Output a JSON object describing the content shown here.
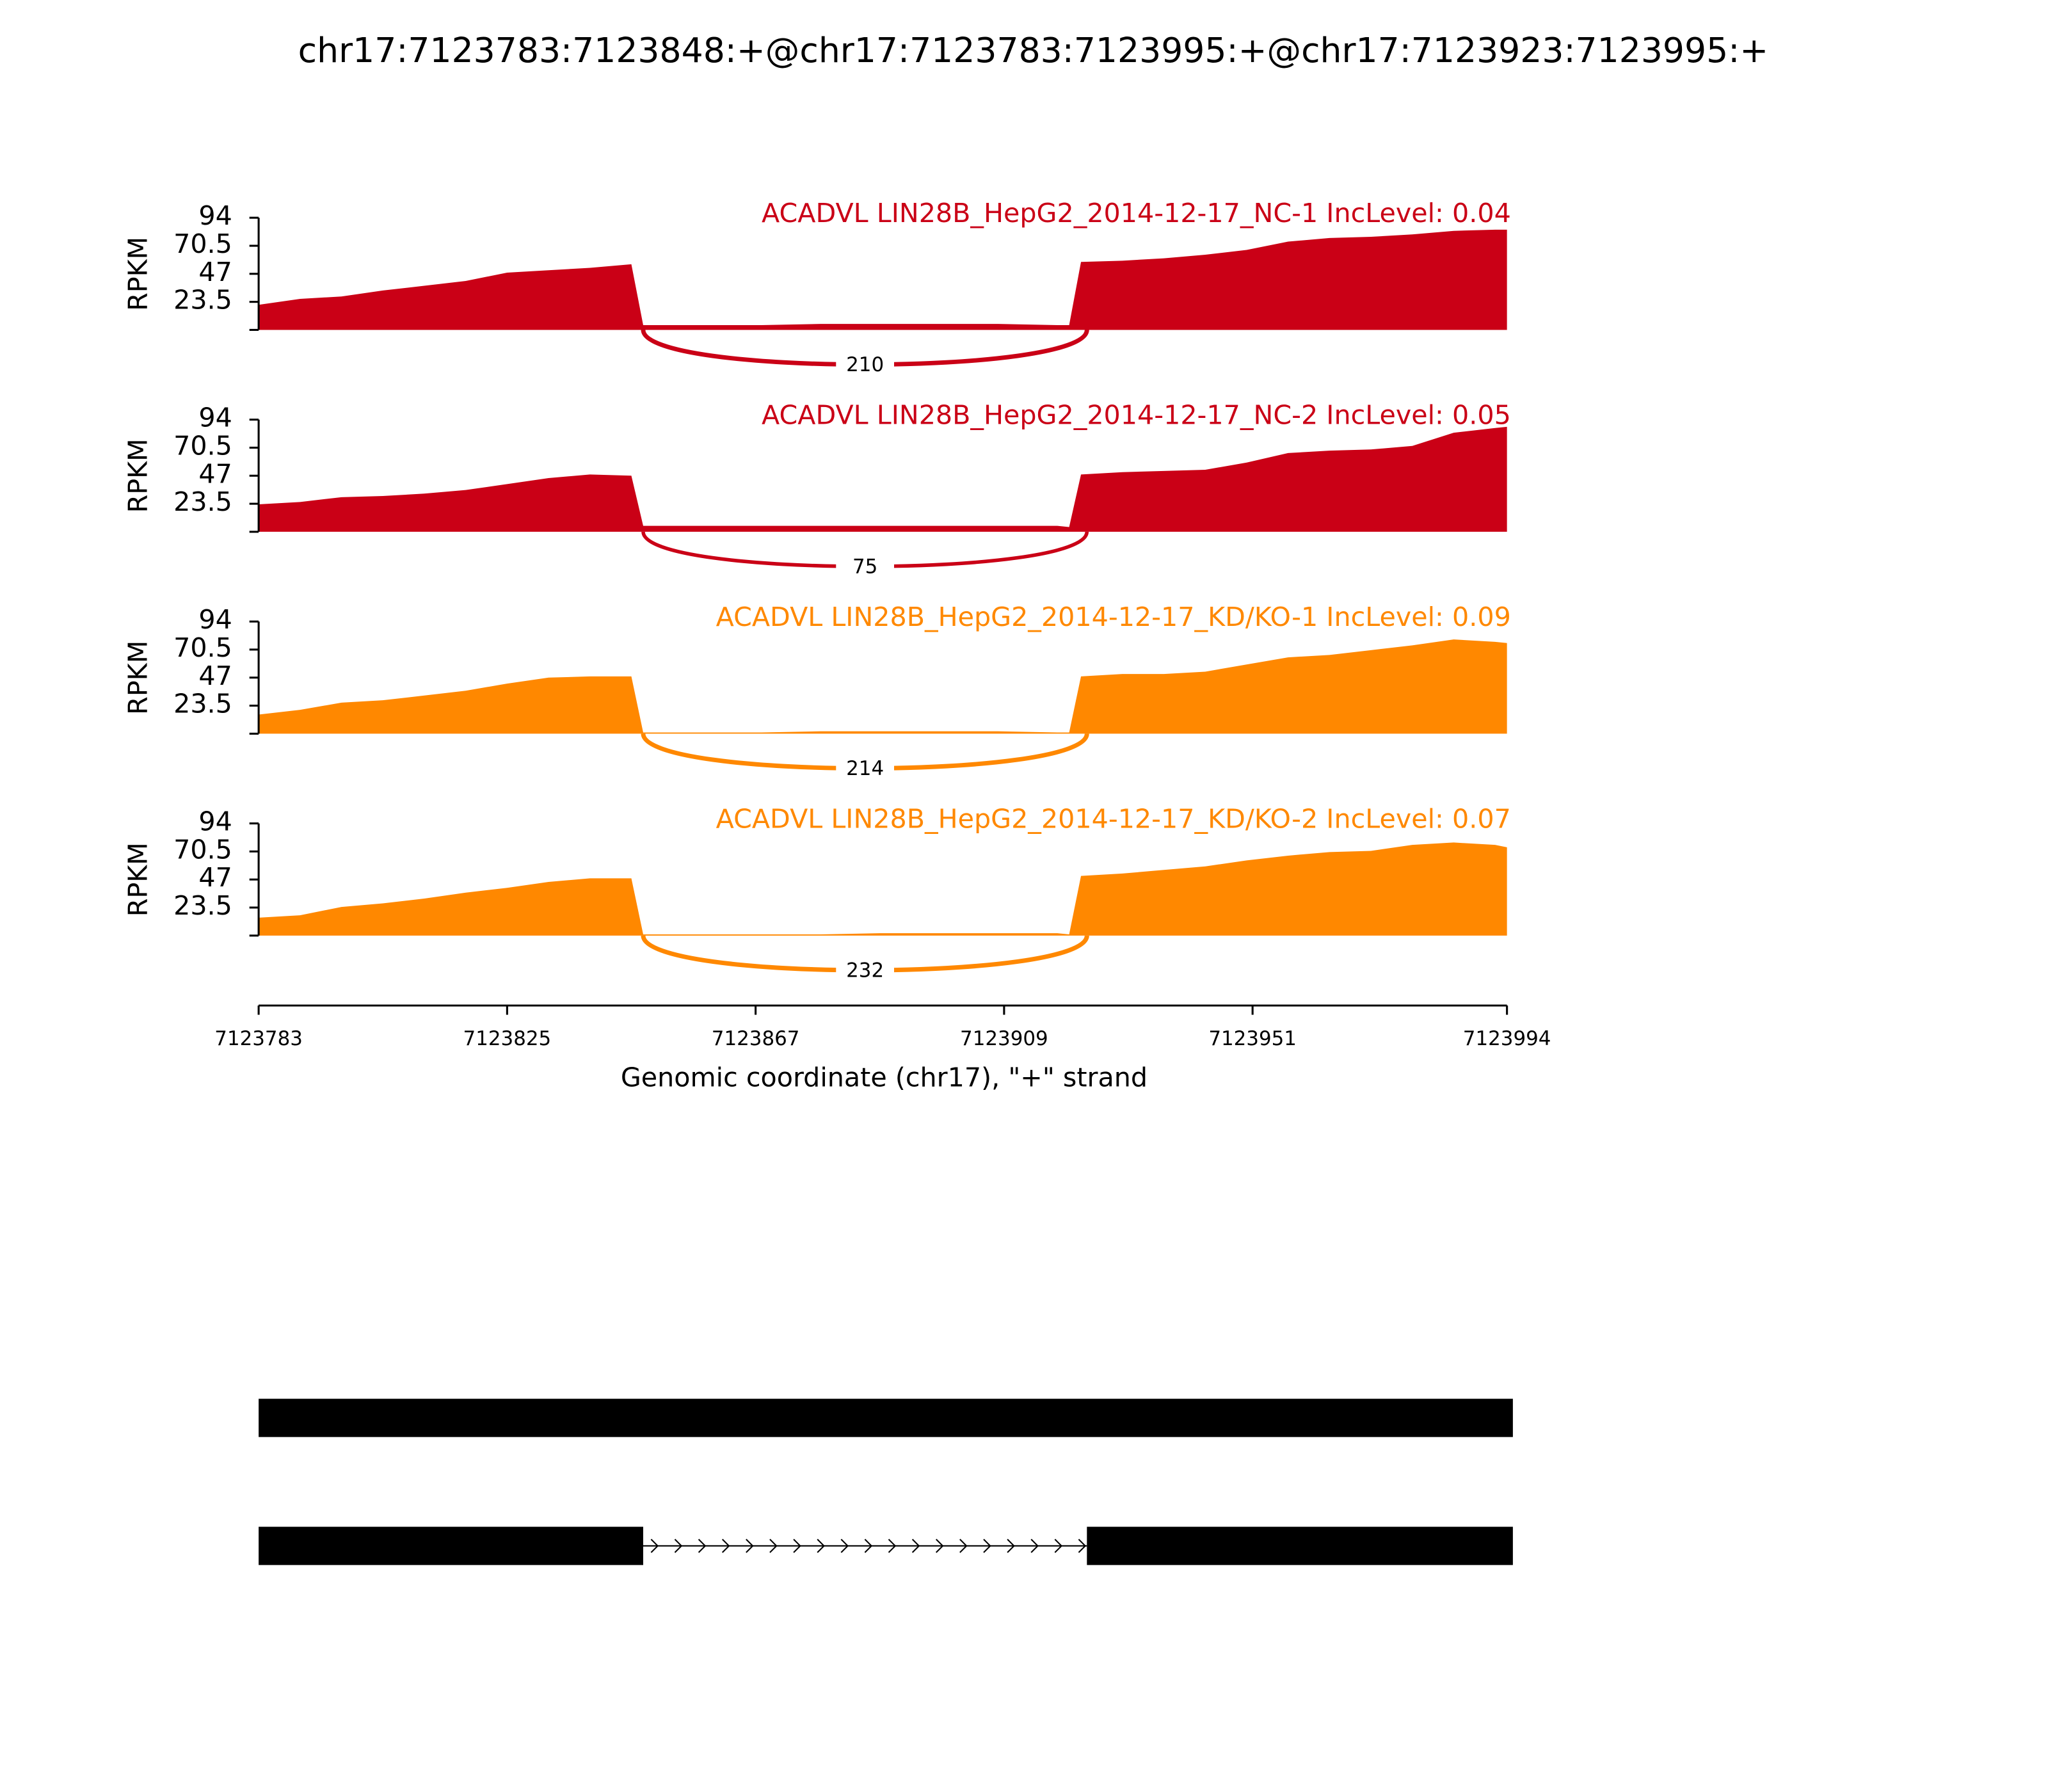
{
  "chart_data": {
    "type": "sashimi",
    "title": "chr17:7123783:7123848:+@chr17:7123783:7123995:+@chr17:7123923:7123995:+",
    "ylabel": "RPKM",
    "xlabel": "Genomic coordinate (chr17), \"+\" strand",
    "ylim": [
      0,
      94
    ],
    "yticks": [
      23.5,
      47,
      70.5,
      94
    ],
    "xlim": [
      7123783,
      7123994
    ],
    "xticks": [
      7123783,
      7123825,
      7123867,
      7123909,
      7123951,
      7123994
    ],
    "x": [
      7123783,
      7123790,
      7123797,
      7123804,
      7123811,
      7123818,
      7123825,
      7123832,
      7123839,
      7123846,
      7123848,
      7123858,
      7123868,
      7123878,
      7123888,
      7123898,
      7123908,
      7123918,
      7123920,
      7123922,
      7123929,
      7123936,
      7123943,
      7123950,
      7123957,
      7123964,
      7123971,
      7123978,
      7123985,
      7123992,
      7123994
    ],
    "panels": [
      {
        "name": "ACADVL LIN28B_HepG2_2014-12-17_NC-1 IncLevel: 0.04",
        "color": "#ca0016",
        "values": [
          21,
          26,
          28,
          33,
          37,
          41,
          48,
          50,
          52,
          55,
          4,
          4,
          4,
          5,
          5,
          5,
          5,
          4,
          4,
          57,
          58,
          60,
          63,
          67,
          74,
          77,
          78,
          80,
          83,
          84,
          84
        ],
        "junction": {
          "start": 7123848,
          "end": 7123923,
          "count": 210
        }
      },
      {
        "name": "ACADVL LIN28B_HepG2_2014-12-17_NC-2 IncLevel: 0.05",
        "color": "#ca0016",
        "values": [
          23,
          25,
          29,
          30,
          32,
          35,
          40,
          45,
          48,
          47,
          5,
          5,
          5,
          5,
          5,
          5,
          5,
          5,
          4,
          48,
          50,
          51,
          52,
          58,
          66,
          68,
          69,
          72,
          83,
          87,
          88
        ],
        "junction": {
          "start": 7123848,
          "end": 7123923,
          "count": 75
        }
      },
      {
        "name": "ACADVL LIN28B_HepG2_2014-12-17_KD/KO-1 IncLevel: 0.09",
        "color": "#ff8800",
        "values": [
          16,
          20,
          26,
          28,
          32,
          36,
          42,
          47,
          48,
          48,
          1,
          1,
          1,
          2,
          2,
          2,
          2,
          1,
          1,
          48,
          50,
          50,
          52,
          58,
          64,
          66,
          70,
          74,
          79,
          77,
          76
        ],
        "junction": {
          "start": 7123848,
          "end": 7123923,
          "count": 214
        }
      },
      {
        "name": "ACADVL LIN28B_HepG2_2014-12-17_KD/KO-2 IncLevel: 0.07",
        "color": "#ff8800",
        "values": [
          15,
          17,
          24,
          27,
          31,
          36,
          40,
          45,
          48,
          48,
          1,
          1,
          1,
          1,
          2,
          2,
          2,
          2,
          1,
          50,
          52,
          55,
          58,
          63,
          67,
          70,
          71,
          76,
          78,
          76,
          74
        ],
        "junction": {
          "start": 7123848,
          "end": 7123923,
          "count": 232
        }
      }
    ],
    "transcripts": [
      [
        [
          7123783,
          7123995
        ]
      ],
      [
        [
          7123783,
          7123848
        ],
        [
          7123923,
          7123995
        ]
      ]
    ]
  }
}
